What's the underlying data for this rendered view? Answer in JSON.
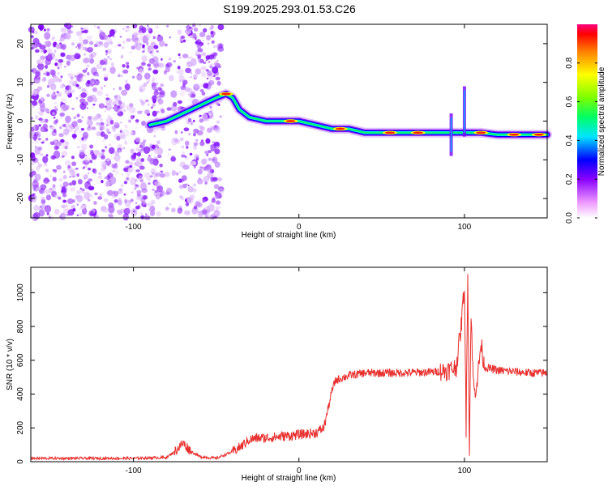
{
  "title": "S199.2025.293.01.53.C26",
  "chart_data": [
    {
      "type": "heatmap",
      "xlabel": "Height of straight line (km)",
      "ylabel": "Frequency (Hz)",
      "xlim": [
        -162,
        150
      ],
      "ylim": [
        -25,
        25
      ],
      "xticks": [
        -100,
        0,
        100
      ],
      "yticks": [
        -20,
        -10,
        0,
        10,
        20
      ],
      "ridge": {
        "x": [
          -90,
          -80,
          -70,
          -60,
          -50,
          -44,
          -40,
          -36,
          -30,
          -20,
          -10,
          0,
          10,
          20,
          30,
          40,
          50,
          60,
          70,
          80,
          85,
          90,
          94,
          98,
          102,
          110,
          120,
          130,
          140,
          150
        ],
        "freq": [
          -1,
          0,
          2,
          4,
          6,
          7,
          6,
          3,
          1,
          0,
          0,
          0,
          -1,
          -2,
          -2,
          -3,
          -3,
          -3,
          -3,
          -3,
          -3,
          -3,
          -3,
          -3,
          -3,
          -3,
          -3.5,
          -3.5,
          -3.5,
          -3.5
        ]
      },
      "colorbar": {
        "label": "Normalized spectral amplitude",
        "ticks": [
          "0.0",
          "0.2",
          "0.4",
          "0.6",
          "0.8"
        ],
        "range": [
          0,
          1
        ]
      }
    },
    {
      "type": "line",
      "xlabel": "Height of straight line (km)",
      "ylabel": "SNR (10 * v/v)",
      "xlim": [
        -162,
        150
      ],
      "ylim": [
        0,
        1150
      ],
      "xticks": [
        -100,
        0,
        100
      ],
      "yticks": [
        0,
        200,
        400,
        600,
        800,
        1000
      ],
      "color": "#e8302f",
      "series": [
        {
          "name": "SNR",
          "x": [
            -162,
            -100,
            -80,
            -75,
            -70,
            -65,
            -60,
            -50,
            -45,
            -40,
            -35,
            -30,
            -25,
            -20,
            -10,
            0,
            10,
            15,
            18,
            20,
            22,
            30,
            40,
            60,
            80,
            90,
            95,
            98,
            100,
            101,
            102,
            103,
            104,
            105,
            106,
            108,
            110,
            112,
            120,
            140,
            150
          ],
          "y": [
            20,
            20,
            25,
            60,
            110,
            60,
            30,
            20,
            40,
            60,
            90,
            130,
            140,
            140,
            150,
            160,
            170,
            200,
            330,
            420,
            480,
            510,
            525,
            525,
            530,
            540,
            560,
            800,
            1050,
            200,
            1150,
            60,
            900,
            550,
            400,
            500,
            700,
            560,
            540,
            525,
            525
          ]
        }
      ]
    }
  ]
}
